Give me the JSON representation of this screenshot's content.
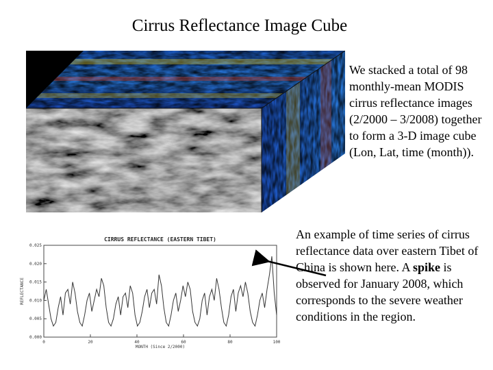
{
  "slide": {
    "title": "Cirrus Reflectance Image Cube",
    "description": "We stacked a total of 98 monthly-mean MODIS cirrus reflectance images (2/2000 – 3/2008) together to form a 3-D image cube (Lon, Lat, time (month)).",
    "example_parts": [
      "An example of time series of cirrus reflectance data over eastern Tibet of China is shown here. A ",
      "spike",
      " is observed for January 2008, which corresponds to the severe weather conditions in the region."
    ]
  },
  "chart_data": {
    "type": "line",
    "title": "CIRRUS REFLECTANCE (EASTERN TIBET)",
    "xlabel": "MONTH (Since 2/2000)",
    "ylabel": "REFLECTANCE",
    "xlim": [
      0,
      100
    ],
    "ylim": [
      0,
      0.025
    ],
    "x_ticks": [
      0,
      20,
      40,
      60,
      80,
      100
    ],
    "y_ticks": [
      0,
      0.005,
      0.01,
      0.015,
      0.02,
      0.025
    ],
    "series": [
      {
        "values": [
          0.01,
          0.013,
          0.009,
          0.005,
          0.003,
          0.004,
          0.008,
          0.011,
          0.006,
          0.012,
          0.013,
          0.009,
          0.015,
          0.012,
          0.007,
          0.004,
          0.003,
          0.006,
          0.01,
          0.012,
          0.007,
          0.01,
          0.013,
          0.011,
          0.016,
          0.014,
          0.008,
          0.004,
          0.003,
          0.005,
          0.009,
          0.011,
          0.006,
          0.011,
          0.012,
          0.008,
          0.014,
          0.012,
          0.006,
          0.003,
          0.004,
          0.007,
          0.011,
          0.013,
          0.008,
          0.012,
          0.013,
          0.009,
          0.017,
          0.014,
          0.008,
          0.004,
          0.003,
          0.006,
          0.01,
          0.012,
          0.007,
          0.01,
          0.014,
          0.011,
          0.015,
          0.013,
          0.007,
          0.004,
          0.003,
          0.005,
          0.01,
          0.012,
          0.006,
          0.011,
          0.013,
          0.01,
          0.016,
          0.013,
          0.008,
          0.004,
          0.003,
          0.006,
          0.011,
          0.013,
          0.007,
          0.012,
          0.014,
          0.011,
          0.015,
          0.012,
          0.007,
          0.004,
          0.003,
          0.006,
          0.01,
          0.012,
          0.008,
          0.013,
          0.017,
          0.022,
          0.012,
          0.006
        ]
      }
    ]
  },
  "colors": {
    "background": "#ffffff",
    "text": "#000000",
    "series": "#333333"
  }
}
